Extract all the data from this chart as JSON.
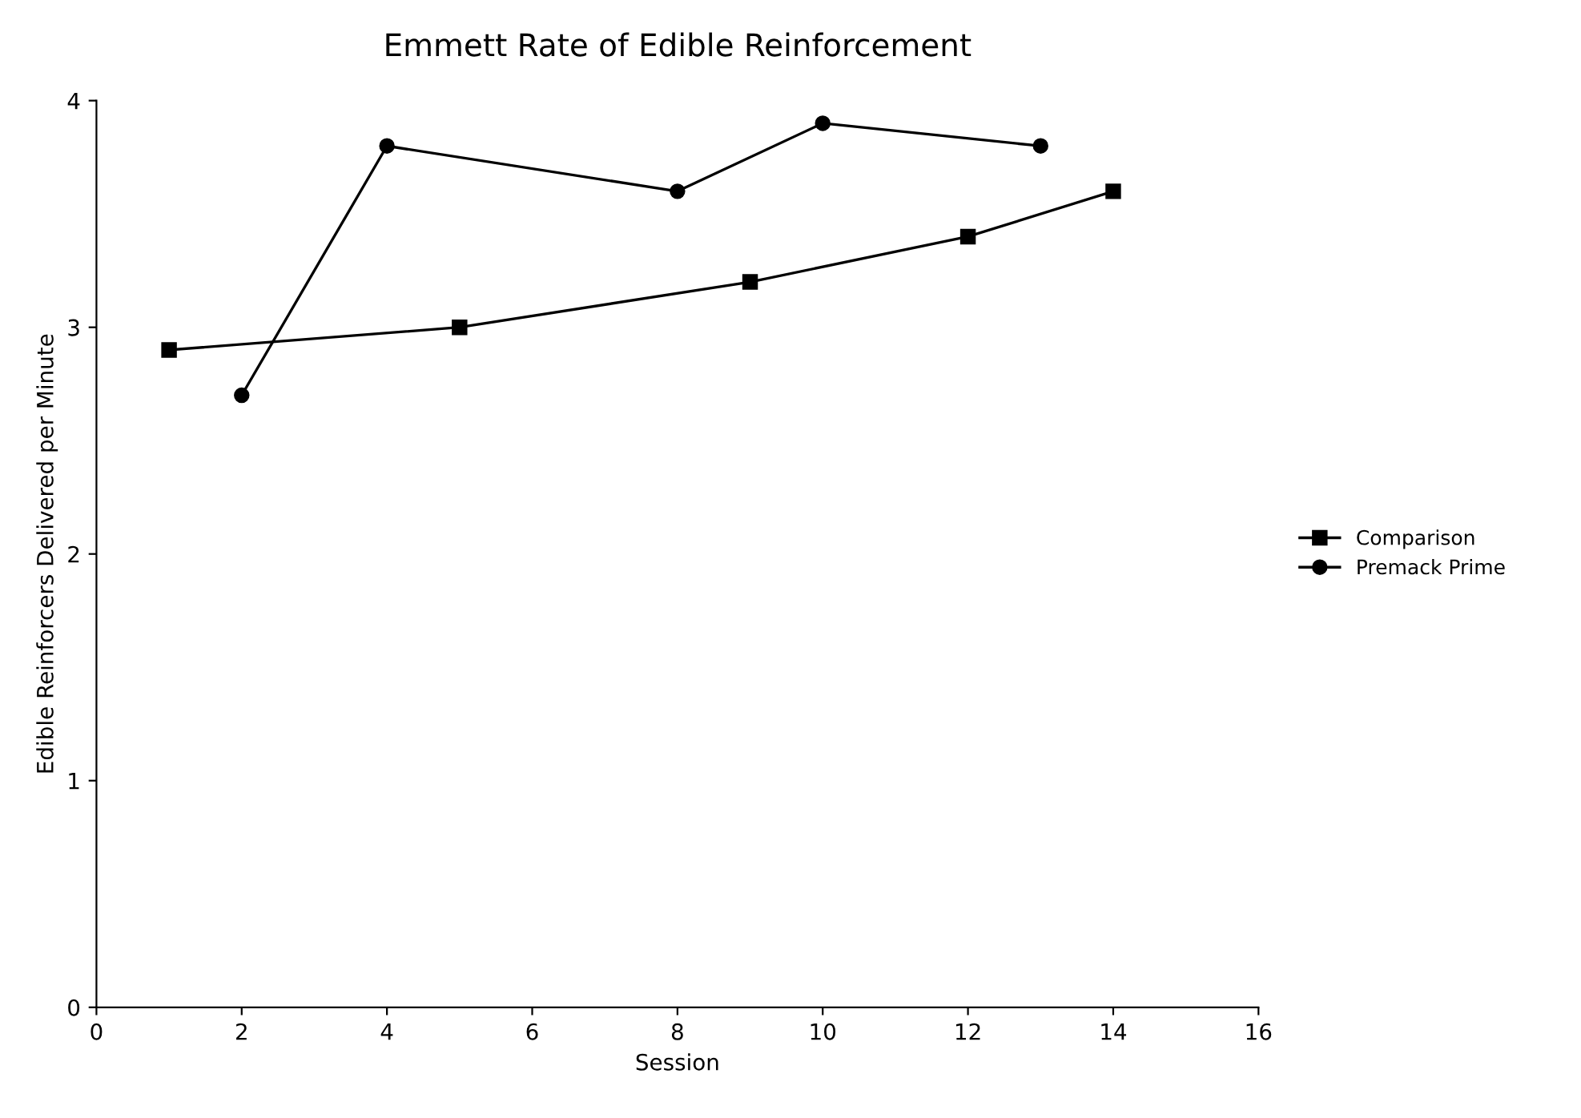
{
  "chart_data": {
    "type": "line",
    "title": "Emmett Rate of Edible Reinforcement",
    "xlabel": "Session",
    "ylabel": "Edible Reinforcers Delivered per Minute",
    "series": [
      {
        "name": "Comparison",
        "color": "#000000",
        "marker": "square",
        "x": [
          1,
          5,
          9,
          12,
          14
        ],
        "values": [
          2.9,
          3.0,
          3.2,
          3.4,
          3.6
        ]
      },
      {
        "name": "Premack Prime",
        "color": "#000000",
        "marker": "circle",
        "x": [
          2,
          4,
          8,
          10,
          13
        ],
        "values": [
          2.7,
          3.8,
          3.6,
          3.9,
          3.8
        ]
      }
    ],
    "xlim": [
      0,
      16
    ],
    "xticks": [
      0,
      2,
      4,
      6,
      8,
      10,
      12,
      14,
      16
    ],
    "ylim": [
      0,
      4
    ],
    "yticks": [
      0,
      1,
      2,
      3,
      4
    ],
    "grid": false,
    "legend": "right",
    "line_style": "solid"
  }
}
